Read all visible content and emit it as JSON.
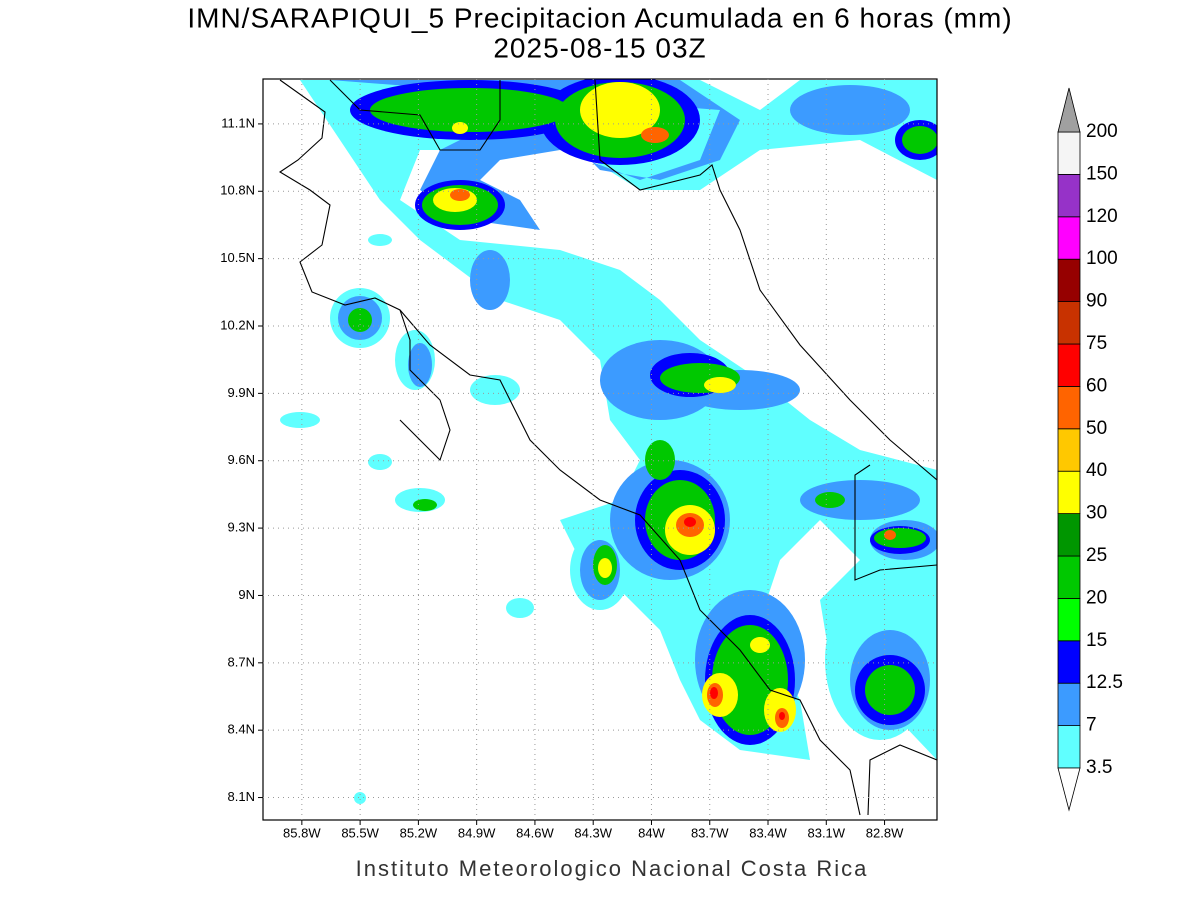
{
  "title": "IMN/SARAPIQUI_5 Precipitacion Acumulada en 6 horas (mm)",
  "subtitle": "2025-08-15 03Z",
  "map": {
    "xlim": [
      -86.0,
      -82.53
    ],
    "ylim": [
      8.0,
      11.3
    ],
    "xticks": [
      {
        "value": -85.8,
        "label": "85.8W"
      },
      {
        "value": -85.5,
        "label": "85.5W"
      },
      {
        "value": -85.2,
        "label": "85.2W"
      },
      {
        "value": -84.9,
        "label": "84.9W"
      },
      {
        "value": -84.6,
        "label": "84.6W"
      },
      {
        "value": -84.3,
        "label": "84.3W"
      },
      {
        "value": -84.0,
        "label": "84W"
      },
      {
        "value": -83.7,
        "label": "83.7W"
      },
      {
        "value": -83.4,
        "label": "83.4W"
      },
      {
        "value": -83.1,
        "label": "83.1W"
      },
      {
        "value": -82.8,
        "label": "82.8W"
      }
    ],
    "yticks": [
      {
        "value": 8.1,
        "label": "8.1N"
      },
      {
        "value": 8.4,
        "label": "8.4N"
      },
      {
        "value": 8.7,
        "label": "8.7N"
      },
      {
        "value": 9.0,
        "label": "9N"
      },
      {
        "value": 9.3,
        "label": "9.3N"
      },
      {
        "value": 9.6,
        "label": "9.6N"
      },
      {
        "value": 9.9,
        "label": "9.9N"
      },
      {
        "value": 10.2,
        "label": "10.2N"
      },
      {
        "value": 10.5,
        "label": "10.5N"
      },
      {
        "value": 10.8,
        "label": "10.8N"
      },
      {
        "value": 11.1,
        "label": "11.1N"
      }
    ],
    "grid": true
  },
  "colorbar": {
    "levels": [
      3.5,
      7,
      12.5,
      15,
      20,
      25,
      30,
      40,
      50,
      60,
      75,
      90,
      100,
      120,
      150,
      200
    ],
    "colors": [
      "#60ffff",
      "#3c9bff",
      "#0000ff",
      "#00ff00",
      "#00c800",
      "#009600",
      "#ffff00",
      "#ffc800",
      "#ff6400",
      "#ff0000",
      "#c83200",
      "#960000",
      "#ff00ff",
      "#9632c8",
      "#f5f5f5"
    ],
    "over_color": "#a0a0a0",
    "under_color": "#ffffff"
  },
  "footer": "Instituto Meteorologico Nacional Costa Rica"
}
